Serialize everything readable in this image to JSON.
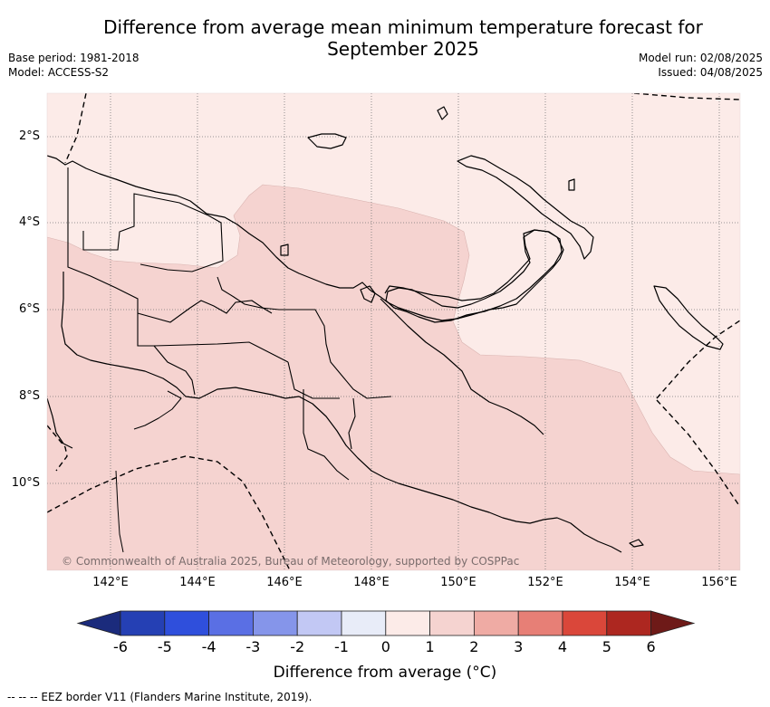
{
  "title": {
    "line1": "Difference from average mean minimum temperature forecast for",
    "line2": "September 2025"
  },
  "meta": {
    "base_period": "Base period: 1981-2018",
    "model": "Model: ACCESS-S2",
    "model_run": "Model run: 02/08/2025",
    "issued": "Issued: 04/08/2025"
  },
  "axes": {
    "lat_labels": [
      "2°S",
      "4°S",
      "6°S",
      "8°S",
      "10°S"
    ],
    "lon_labels": [
      "142°E",
      "144°E",
      "146°E",
      "148°E",
      "150°E",
      "152°E",
      "154°E",
      "156°E"
    ]
  },
  "copyright": "© Commonwealth of Australia 2025, Bureau of Meteorology, supported by COSPPac",
  "colorbar": {
    "ticks": [
      "-6",
      "-5",
      "-4",
      "-3",
      "-2",
      "-1",
      "0",
      "1",
      "2",
      "3",
      "4",
      "5",
      "6"
    ],
    "colors": [
      "#1b2b7c",
      "#2540b4",
      "#2f4fdc",
      "#5a6fe4",
      "#8595ea",
      "#c2c8f4",
      "#e8ecf8",
      "#fcebe8",
      "#f5d3d0",
      "#efaba4",
      "#e77f76",
      "#da473a",
      "#ad2720",
      "#6e1a18"
    ],
    "label": "Difference from average (°C)"
  },
  "map_colors": {
    "zero_to_one": "#fcebe8",
    "one_to_two": "#f5d3d0"
  },
  "footnote": "-- -- -- EEZ border V11 (Flanders Marine Institute, 2019)."
}
